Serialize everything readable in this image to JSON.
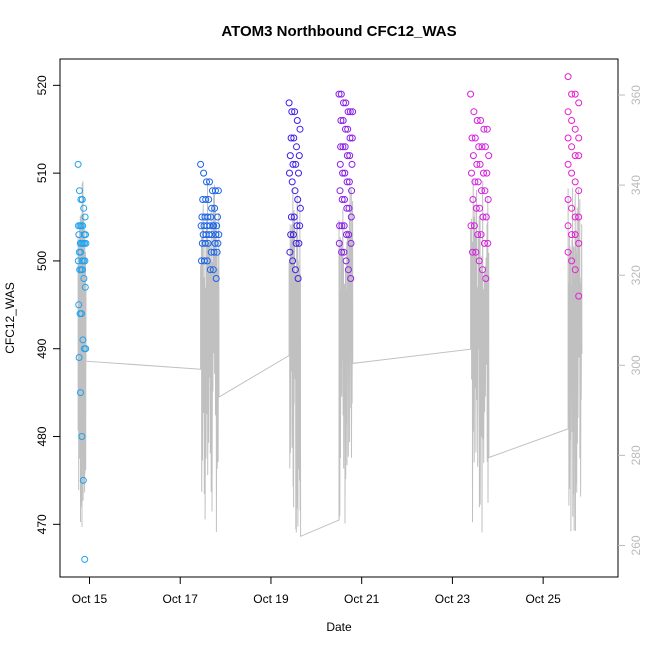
{
  "chart_data": {
    "type": "scatter",
    "title": "ATOM3 Northbound CFC12_WAS",
    "xlabel": "Date",
    "ylabel": "CFC12_WAS",
    "x_range_days": [
      14.35,
      26.65
    ],
    "y_range": [
      464,
      523
    ],
    "y2_range": [
      253,
      368
    ],
    "x_ticks": [
      {
        "label": "Oct 15",
        "day": 15
      },
      {
        "label": "Oct 17",
        "day": 17
      },
      {
        "label": "Oct 19",
        "day": 19
      },
      {
        "label": "Oct 21",
        "day": 21
      },
      {
        "label": "Oct 23",
        "day": 23
      },
      {
        "label": "Oct 25",
        "day": 25
      }
    ],
    "y_ticks": [
      470,
      480,
      490,
      500,
      510,
      520
    ],
    "y2_ticks": [
      260,
      280,
      300,
      320,
      340,
      360
    ],
    "colors": {
      "line": "#c0c0c0",
      "axis": "#000000",
      "right_axis": "#bbbbbb"
    },
    "flights": [
      {
        "day_start": 14.75,
        "day_end": 14.92,
        "color": "#1fa2f0",
        "values": [
          511,
          508,
          507,
          507,
          506,
          505,
          504,
          504,
          504,
          504,
          503,
          503,
          503,
          502,
          502,
          502,
          502,
          502,
          501,
          501,
          500,
          500,
          500,
          500,
          499,
          499,
          499,
          498,
          497,
          495,
          494,
          494,
          491,
          490,
          490,
          489,
          485,
          480,
          475,
          466
        ]
      },
      {
        "day_start": 17.45,
        "day_end": 17.85,
        "color": "#1864ea",
        "values": [
          511,
          510,
          509,
          509,
          508,
          508,
          508,
          507,
          507,
          507,
          506,
          506,
          505,
          505,
          505,
          505,
          505,
          504,
          504,
          504,
          504,
          504,
          504,
          504,
          503,
          503,
          503,
          503,
          503,
          503,
          502,
          502,
          502,
          502,
          502,
          501,
          501,
          501,
          500,
          500,
          500,
          499,
          499,
          498
        ]
      },
      {
        "day_start": 19.4,
        "day_end": 19.65,
        "color": "#3d1fe8",
        "values": [
          518,
          517,
          517,
          516,
          515,
          514,
          514,
          513,
          512,
          512,
          511,
          511,
          510,
          510,
          509,
          508,
          507,
          506,
          505,
          505,
          504,
          504,
          503,
          503,
          502,
          502,
          501,
          500,
          499,
          498
        ]
      },
      {
        "day_start": 20.5,
        "day_end": 20.8,
        "color": "#8a1fe6",
        "values": [
          519,
          519,
          518,
          518,
          517,
          517,
          517,
          516,
          516,
          515,
          515,
          514,
          514,
          513,
          513,
          513,
          512,
          512,
          511,
          511,
          510,
          510,
          509,
          509,
          508,
          508,
          507,
          507,
          506,
          506,
          505,
          504,
          504,
          504,
          503,
          503,
          502,
          502,
          501,
          501,
          500,
          499,
          498
        ]
      },
      {
        "day_start": 23.4,
        "day_end": 23.8,
        "color": "#d61fe0",
        "values": [
          519,
          517,
          516,
          516,
          515,
          515,
          514,
          514,
          513,
          513,
          513,
          512,
          512,
          511,
          511,
          510,
          510,
          510,
          509,
          509,
          508,
          508,
          507,
          507,
          506,
          506,
          505,
          505,
          504,
          504,
          503,
          503,
          502,
          502,
          501,
          501,
          500,
          499,
          498
        ]
      },
      {
        "day_start": 25.55,
        "day_end": 25.85,
        "color": "#e61fd2",
        "values": [
          521,
          519,
          519,
          518,
          517,
          516,
          515,
          514,
          514,
          513,
          512,
          512,
          511,
          510,
          509,
          508,
          507,
          506,
          505,
          505,
          504,
          503,
          503,
          502,
          501,
          500,
          499,
          496
        ]
      }
    ]
  }
}
